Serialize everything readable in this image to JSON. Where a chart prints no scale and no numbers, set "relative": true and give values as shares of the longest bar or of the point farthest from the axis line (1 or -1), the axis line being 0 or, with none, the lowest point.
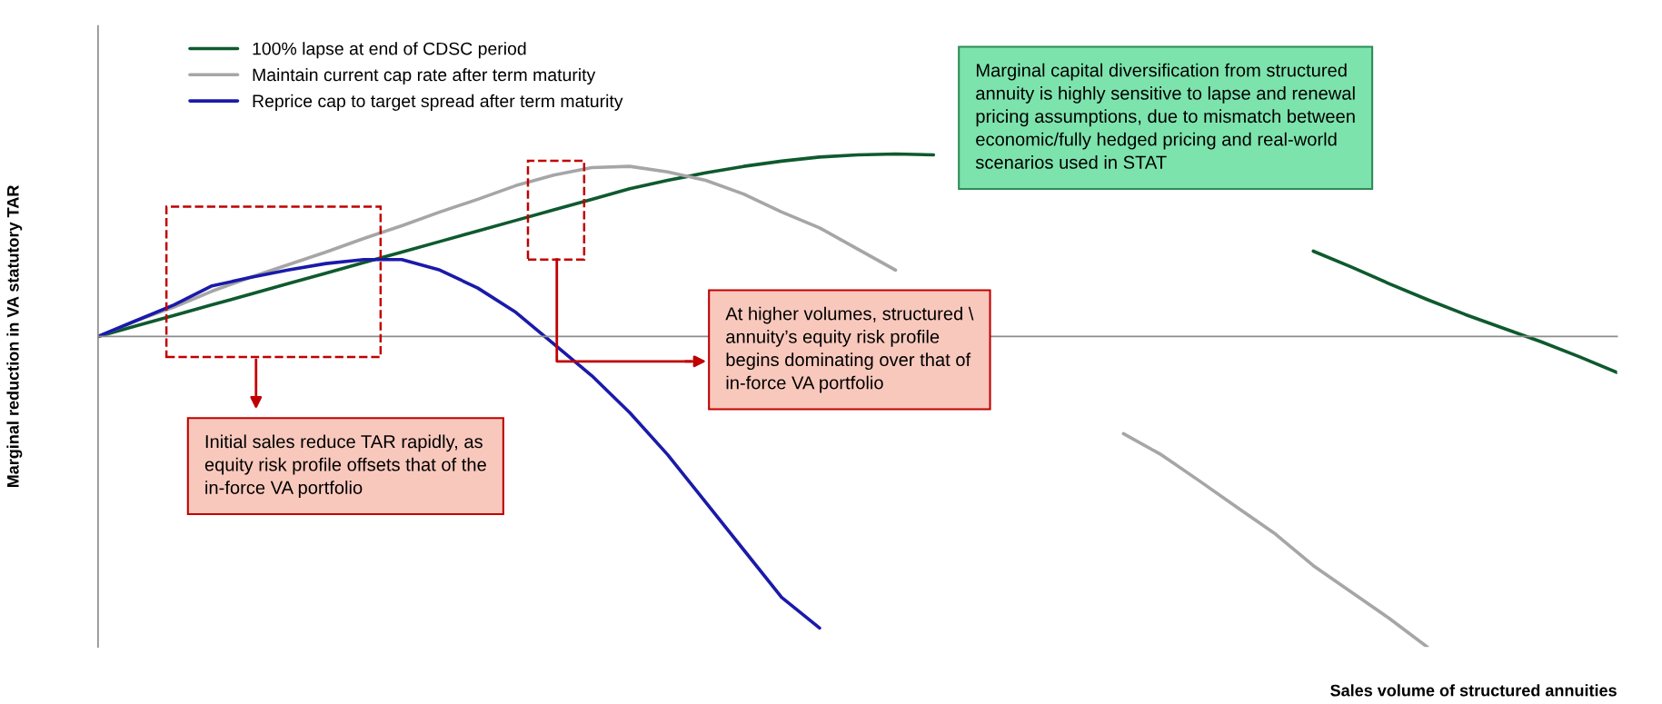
{
  "chart_data": {
    "type": "line",
    "relative": true,
    "xlabel": "Sales volume of structured annuities",
    "ylabel": "Marginal reduction in VA statutory TAR",
    "legend": "top left",
    "marker": "none",
    "line_style": "solid",
    "categories": [
      null,
      null,
      null,
      null,
      null,
      null,
      null,
      null,
      null,
      null,
      null,
      null,
      null,
      null,
      null,
      null,
      null,
      null,
      null,
      null,
      null,
      null,
      null,
      null,
      null,
      null,
      null,
      null,
      null,
      null,
      null,
      null,
      null,
      null,
      null,
      null,
      null,
      null,
      null,
      null,
      null
    ],
    "series": [
      {
        "name": "100% lapse at end of CDSC period",
        "color": "#0e5a2e",
        "values": [
          0,
          0.034,
          0.068,
          0.102,
          0.136,
          0.17,
          0.204,
          0.238,
          0.272,
          0.306,
          0.34,
          0.374,
          0.408,
          0.442,
          0.476,
          0.503,
          0.527,
          0.548,
          0.565,
          0.578,
          0.585,
          0.588,
          0.585,
          null,
          null,
          null,
          null,
          null,
          null,
          null,
          null,
          null,
          0.275,
          0.224,
          0.17,
          0.119,
          0.071,
          0.027,
          -0.017,
          -0.065,
          -0.116
        ]
      },
      {
        "name": "Maintain current cap rate after term maturity",
        "color": "#a6a6a6",
        "values": [
          0,
          0.051,
          0.095,
          0.146,
          0.19,
          0.231,
          0.272,
          0.316,
          0.357,
          0.401,
          0.442,
          0.486,
          0.52,
          0.544,
          0.548,
          0.53,
          0.503,
          0.459,
          0.401,
          0.35,
          0.282,
          0.214,
          null,
          null,
          null,
          null,
          null,
          -0.313,
          -0.381,
          -0.465,
          -0.551,
          -0.636,
          -0.738,
          -0.823,
          -0.908,
          -1.0,
          null,
          null,
          null,
          null,
          null
        ]
      },
      {
        "name": "Reprice cap to target spread after term maturity",
        "color": "#1a1aaa",
        "values": [
          0,
          0.051,
          0.102,
          0.163,
          0.19,
          0.214,
          0.235,
          0.248,
          0.248,
          0.214,
          0.156,
          0.078,
          -0.024,
          -0.126,
          -0.245,
          -0.381,
          -0.534,
          -0.687,
          -0.84,
          -0.939,
          null,
          null,
          null,
          null,
          null,
          null,
          null,
          null,
          null,
          null,
          null,
          null,
          null,
          null,
          null,
          null,
          null,
          null,
          null,
          null,
          null
        ]
      }
    ],
    "annotations": [
      "Marginal capital diversification from structured\nannuity is highly sensitive to lapse and renewal\npricing assumptions, due to mismatch between\neconomic/fully hedged pricing and real-world\nscenarios used in STAT",
      "At higher volumes, structured \\\nannuity’s equity risk profile\nbegins dominating over that of\nin-force VA portfolio",
      "Initial sales reduce TAR rapidly, as\nequity risk profile offsets that of the\nin-force VA portfolio"
    ]
  }
}
